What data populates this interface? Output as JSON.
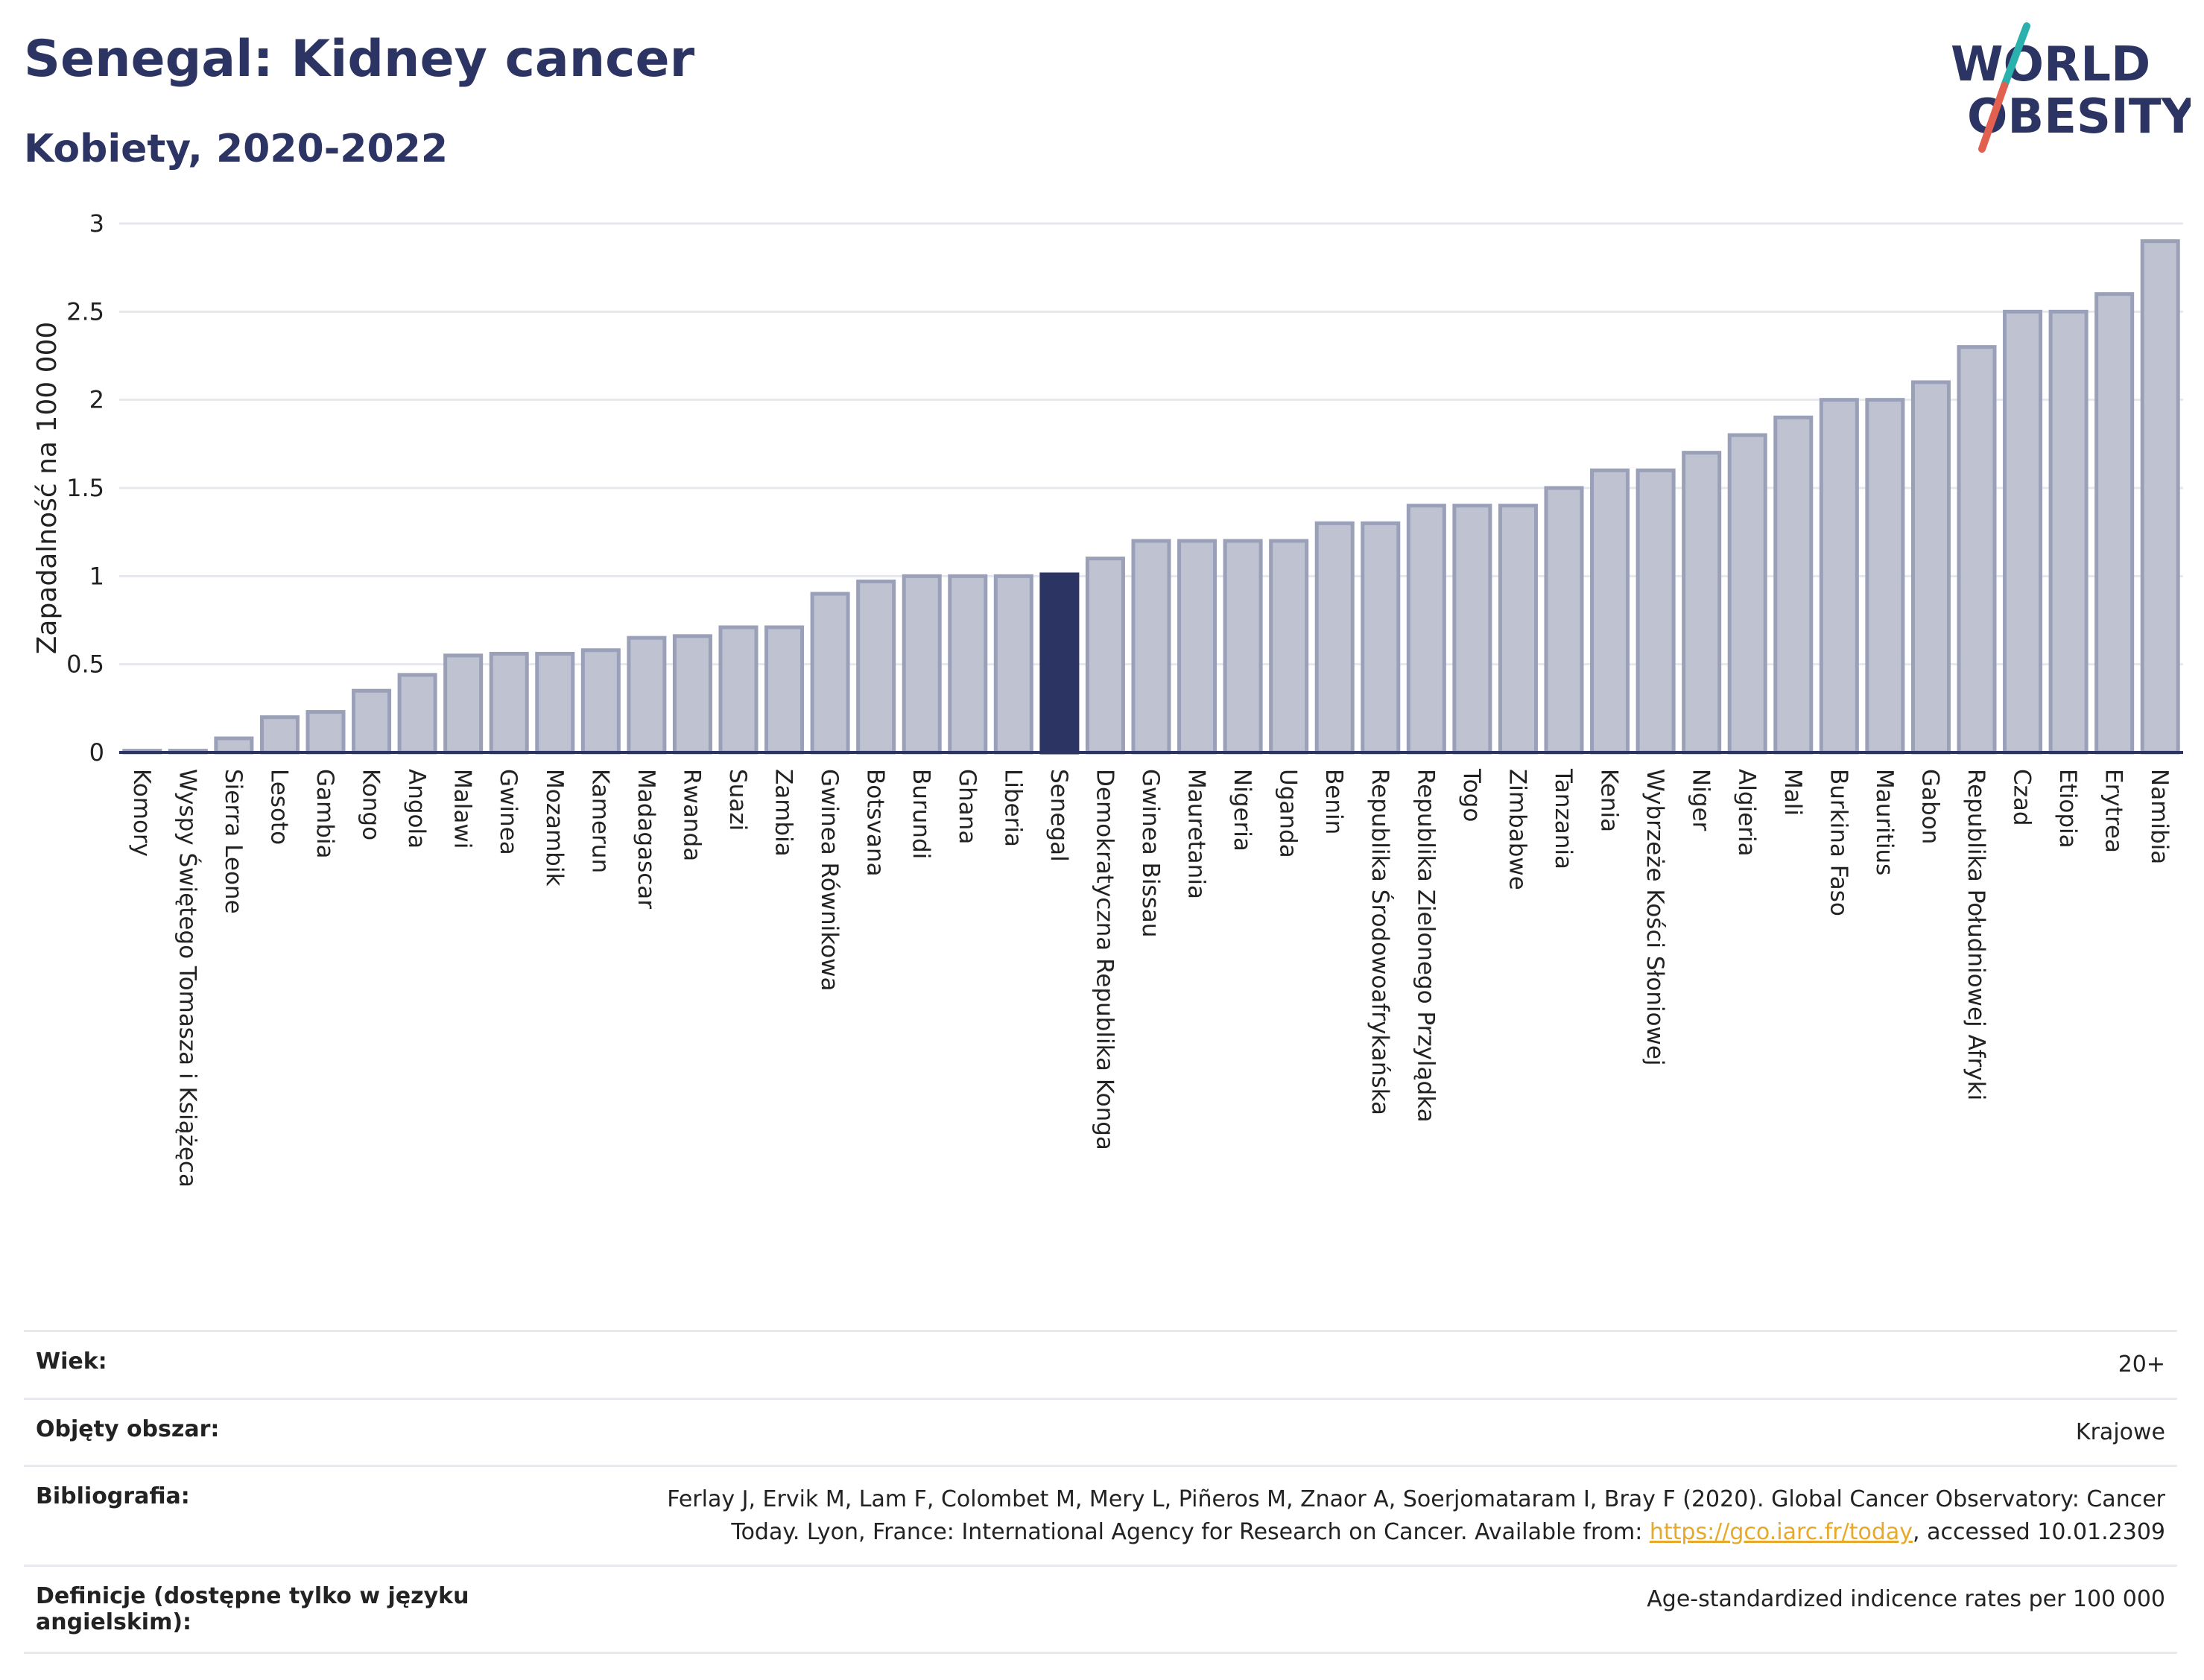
{
  "header": {
    "title": "Senegal: Kidney cancer",
    "subtitle": "Kobiety, 2020-2022"
  },
  "logo": {
    "line1": "WORLD",
    "line2": "OBESITY",
    "colors": {
      "text": "#2b3463",
      "slash_teal": "#2ab0ad",
      "slash_red": "#e2604f"
    }
  },
  "colors": {
    "bar_fill": "#bfc3d1",
    "bar_stroke": "#9aa0b8",
    "highlight": "#2b3463",
    "grid": "#e6e8ee",
    "axis": "#2b3463"
  },
  "chart_data": {
    "type": "bar",
    "title": "Senegal: Kidney cancer",
    "subtitle": "Kobiety, 2020-2022",
    "xlabel": "",
    "ylabel": "Zapadalność na 100 000",
    "ylim": [
      0,
      3
    ],
    "yticks": [
      0,
      0.5,
      1,
      1.5,
      2,
      2.5,
      3
    ],
    "grid": true,
    "highlight_category": "Senegal",
    "categories": [
      "Komory",
      "Wyspy Świętego Tomasza i Książęca",
      "Sierra Leone",
      "Lesoto",
      "Gambia",
      "Kongo",
      "Angola",
      "Malawi",
      "Gwinea",
      "Mozambik",
      "Kamerun",
      "Madagascar",
      "Rwanda",
      "Suazi",
      "Zambia",
      "Gwinea Równikowa",
      "Botsvana",
      "Burundi",
      "Ghana",
      "Liberia",
      "Senegal",
      "Demokratyczna Republika Konga",
      "Gwinea Bissau",
      "Mauretania",
      "Nigeria",
      "Uganda",
      "Benin",
      "Republika Środowoafrykańska",
      "Republika Zielonego Przylądka",
      "Togo",
      "Zimbabwe",
      "Tanzania",
      "Kenia",
      "Wybrzeże Kości Słoniowej",
      "Niger",
      "Algieria",
      "Mali",
      "Burkina Faso",
      "Mauritius",
      "Gabon",
      "Republika Południowej Afryki",
      "Czad",
      "Etiopia",
      "Erytrea",
      "Namibia"
    ],
    "values": [
      0.01,
      0.01,
      0.08,
      0.2,
      0.23,
      0.35,
      0.44,
      0.55,
      0.56,
      0.56,
      0.58,
      0.65,
      0.66,
      0.71,
      0.71,
      0.9,
      0.97,
      1.0,
      1.0,
      1.0,
      1.01,
      1.1,
      1.2,
      1.2,
      1.2,
      1.2,
      1.3,
      1.3,
      1.4,
      1.4,
      1.4,
      1.5,
      1.6,
      1.6,
      1.7,
      1.8,
      1.9,
      2.0,
      2.0,
      2.1,
      2.3,
      2.5,
      2.5,
      2.6,
      2.9
    ]
  },
  "info": {
    "rows": [
      {
        "key": "Wiek:",
        "value": "20+"
      },
      {
        "key": "Objęty obszar:",
        "value": "Krajowe"
      },
      {
        "key": "Bibliografia:",
        "value_line1": "Ferlay J, Ervik M, Lam F, Colombet M, Mery L, Piñeros M, Znaor A, Soerjomataram I, Bray F (2020). Global Cancer Observatory: Cancer",
        "value_line2_pre": "Today. Lyon, France: International Agency for Research on Cancer. Available from: ",
        "link": "https://gco.iarc.fr/today",
        "value_line2_post": ", accessed 10.01.2309"
      },
      {
        "key": "Definicje (dostępne tylko w języku angielskim):",
        "value": "Age-standardized indicence rates per 100 000"
      }
    ]
  }
}
